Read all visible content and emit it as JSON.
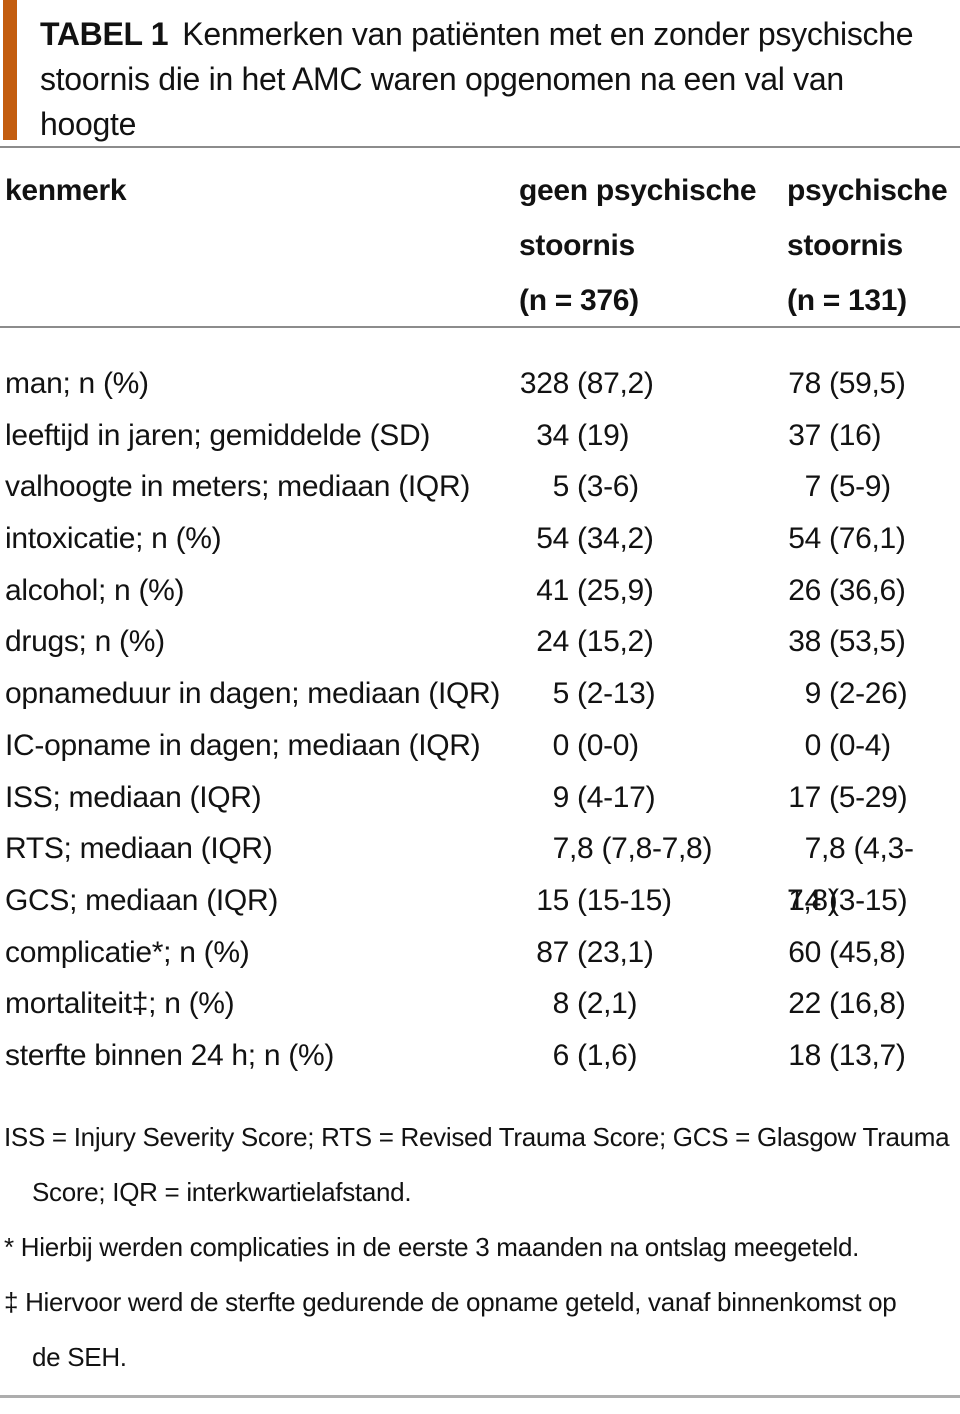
{
  "title": {
    "label": "TABEL 1",
    "text": "Kenmerken van patiënten met en zonder psychische stoornis die in het AMC waren opgenomen na een val van hoogte"
  },
  "colors": {
    "accent": "#c35d0f",
    "rule": "#8c8c8c",
    "bottom_rule": "#adadad"
  },
  "table": {
    "columns": [
      {
        "id": "kenmerk",
        "lines": [
          "kenmerk"
        ]
      },
      {
        "id": "geen_psychische_stoornis",
        "lines": [
          "geen psychische",
          "stoornis",
          "(n = 376)"
        ]
      },
      {
        "id": "psychische_stoornis",
        "lines": [
          "psychische",
          "stoornis",
          "(n = 131)"
        ]
      }
    ],
    "rows": [
      {
        "kenmerk": "man; n (%)",
        "geen": "328 (87,2)",
        "psych": "78 (59,5)"
      },
      {
        "kenmerk": "leeftijd in jaren; gemiddelde (SD)",
        "geen": "34 (19)",
        "psych": "37 (16)"
      },
      {
        "kenmerk": "valhoogte in meters; mediaan (IQR)",
        "geen": "5 (3-6)",
        "psych": "7 (5-9)"
      },
      {
        "kenmerk": "intoxicatie; n (%)",
        "geen": "54 (34,2)",
        "psych": "54 (76,1)"
      },
      {
        "kenmerk": "alcohol; n (%)",
        "geen": "41 (25,9)",
        "psych": "26 (36,6)"
      },
      {
        "kenmerk": "drugs; n (%)",
        "geen": "24 (15,2)",
        "psych": "38 (53,5)"
      },
      {
        "kenmerk": "opnameduur in dagen; mediaan (IQR)",
        "geen": "5 (2-13)",
        "psych": "9 (2-26)"
      },
      {
        "kenmerk": "IC-opname in dagen; mediaan (IQR)",
        "geen": "0 (0-0)",
        "psych": "0 (0-4)"
      },
      {
        "kenmerk": "ISS; mediaan (IQR)",
        "geen": "9 (4-17)",
        "psych": "17 (5-29)"
      },
      {
        "kenmerk": "RTS; mediaan (IQR)",
        "geen": "7,8 (7,8-7,8)",
        "psych": "7,8 (4,3-7,8)"
      },
      {
        "kenmerk": "GCS; mediaan (IQR)",
        "geen": "15 (15-15)",
        "psych": "14 (3-15)"
      },
      {
        "kenmerk": "complicatie*; n (%)",
        "geen": "87 (23,1)",
        "psych": "60 (45,8)"
      },
      {
        "kenmerk": "mortaliteit‡; n (%)",
        "geen": "8 (2,1)",
        "psych": "22 (16,8)"
      },
      {
        "kenmerk": "sterfte binnen 24 h; n (%)",
        "geen": "6 (1,6)",
        "psych": "18 (13,7)"
      }
    ]
  },
  "footnotes": [
    {
      "lines": [
        "ISS = Injury Severity Score; RTS = Revised Trauma Score; GCS = Glasgow Trauma",
        "Score; IQR = interkwartielafstand."
      ]
    },
    {
      "lines": [
        "* Hierbij werden complicaties in de eerste 3 maanden na ontslag meegeteld."
      ]
    },
    {
      "lines": [
        "‡ Hiervoor werd de sterfte gedurende de opname geteld, vanaf binnenkomst op",
        "de SEH."
      ]
    }
  ]
}
